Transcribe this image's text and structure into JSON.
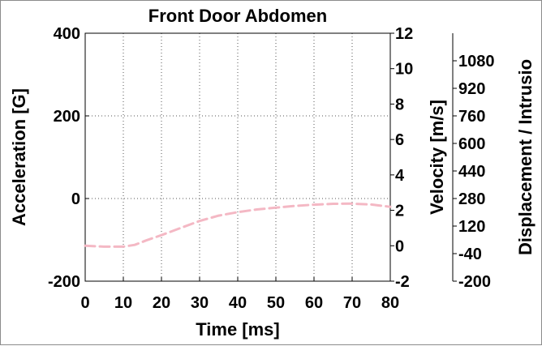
{
  "chart_data": {
    "type": "line",
    "title": "Front Door Abdomen",
    "xlabel": "Time [ms]",
    "x_ticks": [
      "0",
      "10",
      "20",
      "30",
      "40",
      "50",
      "60",
      "70",
      "80"
    ],
    "xlim": [
      0,
      80
    ],
    "grid": true,
    "axes": {
      "acceleration": {
        "label": "Acceleration [G]",
        "ylim": [
          -200,
          400
        ],
        "ticks": [
          "400",
          "200",
          "0",
          "-200"
        ],
        "tick_values": [
          400,
          200,
          0,
          -200
        ]
      },
      "velocity": {
        "label": "Velocity [m/s]",
        "ylim": [
          -2,
          12
        ],
        "ticks": [
          "12",
          "10",
          "8",
          "6",
          "4",
          "2",
          "0",
          "-2"
        ],
        "tick_values": [
          12,
          10,
          8,
          6,
          4,
          2,
          0,
          -2
        ]
      },
      "displacement": {
        "label": "Displacement / Intrusio",
        "ylim": [
          -200,
          1240
        ],
        "ticks": [
          "1080",
          "920",
          "760",
          "600",
          "440",
          "280",
          "120",
          "-40",
          "-200"
        ],
        "tick_values": [
          1080,
          920,
          760,
          600,
          440,
          280,
          120,
          -40,
          -200
        ]
      }
    },
    "series": [
      {
        "axis": "velocity",
        "color": "#f4b8c4",
        "style": "dashed",
        "x": [
          0,
          5,
          10,
          13,
          16,
          20,
          25,
          30,
          35,
          40,
          45,
          50,
          55,
          60,
          65,
          70,
          75,
          80
        ],
        "y": [
          0.0,
          -0.05,
          -0.05,
          0.05,
          0.3,
          0.6,
          1.0,
          1.4,
          1.7,
          1.9,
          2.05,
          2.15,
          2.25,
          2.32,
          2.37,
          2.38,
          2.33,
          2.2
        ]
      }
    ]
  }
}
